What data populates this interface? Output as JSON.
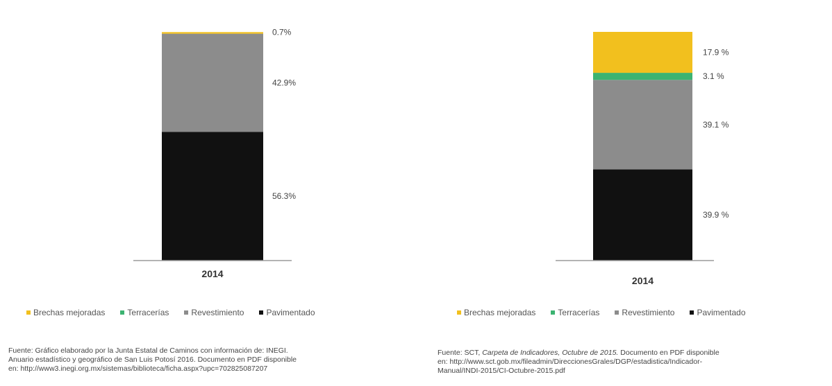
{
  "chart_data": [
    {
      "type": "bar",
      "stacked": true,
      "categories": [
        "2014"
      ],
      "series": [
        {
          "name": "Pavimentado",
          "values": [
            56.3
          ],
          "label": "56.3%"
        },
        {
          "name": "Revestimiento",
          "values": [
            42.9
          ],
          "label": "42.9%"
        },
        {
          "name": "Terracerías",
          "values": [
            0.0
          ],
          "label": ""
        },
        {
          "name": "Brechas mejoradas",
          "values": [
            0.7
          ],
          "label": "0.7%"
        }
      ],
      "legend_labels": [
        "Brechas mejoradas",
        "Terracerías",
        "Revestimiento",
        "Pavimentado"
      ],
      "legend_position": "bottom",
      "ylim": [
        0,
        100
      ],
      "grid": false,
      "source": {
        "line1": "Fuente: Gráfico elaborado por la Junta Estatal de Caminos con información de: INEGI.",
        "line2": "Anuario estadístico y geográfico de San Luis Potosí 2016. Documento en PDF disponible",
        "line3": "en: http://www3.inegi.org.mx/sistemas/biblioteca/ficha.aspx?upc=702825087207"
      }
    },
    {
      "type": "bar",
      "stacked": true,
      "categories": [
        "2014"
      ],
      "series": [
        {
          "name": "Pavimentado",
          "values": [
            39.9
          ],
          "label": "39.9 %"
        },
        {
          "name": "Revestimiento",
          "values": [
            39.1
          ],
          "label": "39.1 %"
        },
        {
          "name": "Terracerías",
          "values": [
            3.1
          ],
          "label": "3.1 %"
        },
        {
          "name": "Brechas mejoradas",
          "values": [
            17.9
          ],
          "label": "17.9 %"
        }
      ],
      "legend_labels": [
        "Brechas mejoradas",
        "Terracerías",
        "Revestimiento",
        "Pavimentado"
      ],
      "legend_position": "bottom",
      "ylim": [
        0,
        100
      ],
      "grid": false,
      "source": {
        "prefix": "Fuente: SCT,",
        "italic": "Carpeta de Indicadores, Octubre de 2015.",
        "suffix": "Documento en PDF disponible",
        "line2": "en: http://www.sct.gob.mx/fileadmin/DireccionesGrales/DGP/estadistica/Indicador-",
        "line3": "Manual/INDI-2015/CI-Octubre-2015.pdf"
      }
    }
  ],
  "colors": {
    "Pavimentado": "#111111",
    "Revestimiento": "#8c8c8c",
    "Terracerías": "#3cb371",
    "Brechas mejoradas": "#f2c01e"
  }
}
